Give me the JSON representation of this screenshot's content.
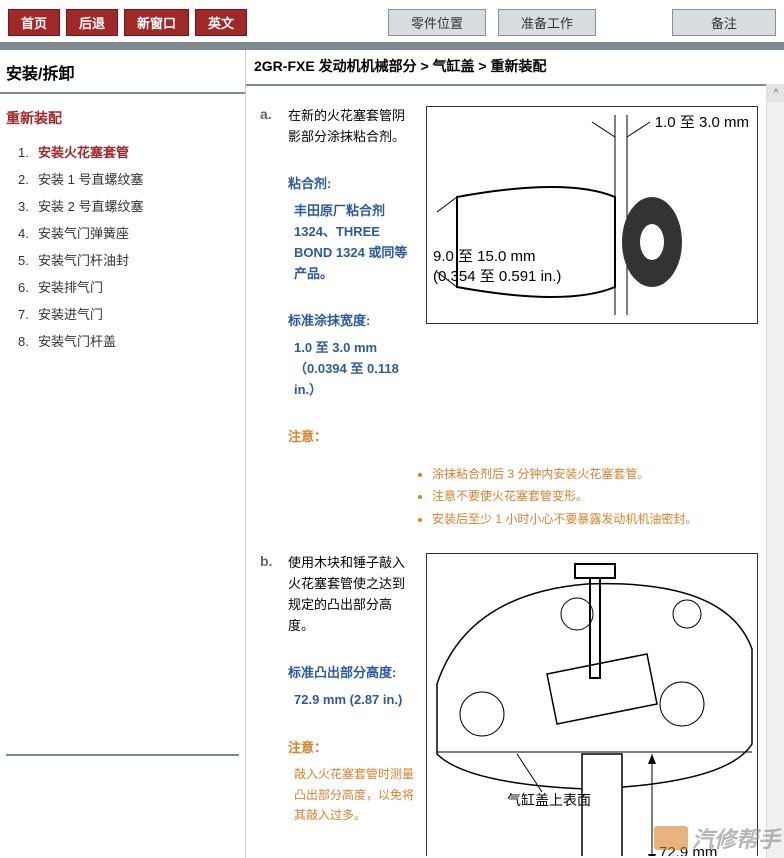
{
  "nav": {
    "home": "首页",
    "back": "后退",
    "new_window": "新窗口",
    "english": "英文"
  },
  "top_tabs": {
    "parts_location": "零件位置",
    "preparation": "准备工作",
    "remark": "备注"
  },
  "sidebar": {
    "title": "安装/拆卸",
    "section": "重新装配",
    "items": [
      {
        "num": "1.",
        "label": "安装火花塞套管",
        "active": true
      },
      {
        "num": "2.",
        "label": "安装 1 号直螺纹塞",
        "active": false
      },
      {
        "num": "3.",
        "label": "安装 2 号直螺纹塞",
        "active": false
      },
      {
        "num": "4.",
        "label": "安装气门弹簧座",
        "active": false
      },
      {
        "num": "5.",
        "label": "安装气门杆油封",
        "active": false
      },
      {
        "num": "6.",
        "label": "安装排气门",
        "active": false
      },
      {
        "num": "7.",
        "label": "安装进气门",
        "active": false
      },
      {
        "num": "8.",
        "label": "安装气门杆盖",
        "active": false
      }
    ]
  },
  "breadcrumb": "2GR-FXE 发动机机械部分 > 气缸盖 > 重新装配",
  "step_a": {
    "letter": "a.",
    "intro": "在新的火花塞套管阴影部分涂抹粘合剂。",
    "adhesive_label": "粘合剂:",
    "adhesive_value": "丰田原厂粘合剂 1324、THREE BOND 1324 或同等产品。",
    "width_label": "标准涂抹宽度:",
    "width_value": "1.0 至 3.0 mm（0.0394 至 0.118 in.）",
    "notice_label": "注意：",
    "notices": [
      "涂抹粘合剂后 3 分钟内安装火花塞套管。",
      "注意不要使火花塞套管变形。",
      "安装后至少 1 小时小心不要暴露发动机机油密封。"
    ],
    "fig": {
      "dim_top": "1.0 至 3.0 mm",
      "dim_left_1": "9.0 至 15.0 mm",
      "dim_left_2": "(0.354 至 0.591 in.)"
    }
  },
  "step_b": {
    "letter": "b.",
    "intro": "使用木块和锤子敲入火花塞套管使之达到规定的凸出部分高度。",
    "height_label": "标准凸出部分高度:",
    "height_value": "72.9 mm (2.87 in.)",
    "notice_label": "注意：",
    "notice_text": "敲入火花塞套管时测量凸出部分高度，以免将其敲入过多。",
    "fig": {
      "surface_label": "气缸盖上表面",
      "dim": "72.9 mm"
    }
  },
  "watermark": "汽修帮手"
}
